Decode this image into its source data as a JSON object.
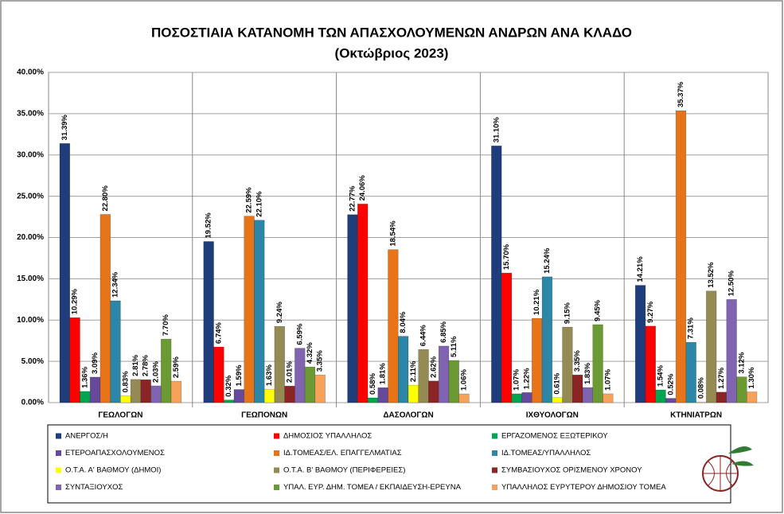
{
  "chart_data": {
    "type": "bar",
    "title": "ΠΟΣΟΣΤΙΑΙΑ ΚΑΤΑΝΟΜΗ ΤΩΝ ΑΠΑΣΧΟΛΟΥΜΕΝΩΝ ΑΝΔΡΩΝ ΑΝΑ ΚΛΑΔΟ",
    "subtitle": "(Οκτώβριος 2023)",
    "categories": [
      "ΓΕΩΛΟΓΩΝ",
      "ΓΕΩΠΟΝΩΝ",
      "ΔΑΣΟΛΟΓΩΝ",
      "ΙΧΘΥΟΛΟΓΩΝ",
      "ΚΤΗΝΙΑΤΡΩΝ"
    ],
    "ylim": [
      0,
      40
    ],
    "yticks": [
      {
        "value": 0,
        "label": "0.00%"
      },
      {
        "value": 5,
        "label": "5.00%"
      },
      {
        "value": 10,
        "label": "10.00%"
      },
      {
        "value": 15,
        "label": "15.00%"
      },
      {
        "value": 20,
        "label": "20.00%"
      },
      {
        "value": 25,
        "label": "25.00%"
      },
      {
        "value": 30,
        "label": "30.00%"
      },
      {
        "value": 35,
        "label": "35.00%"
      },
      {
        "value": 40,
        "label": "40.00%"
      }
    ],
    "grid": true,
    "series": [
      {
        "name": "ΑΝΕΡΓΟΣ/Η",
        "color": "#1f3d7a",
        "values": [
          31.39,
          19.52,
          22.77,
          31.1,
          14.21
        ],
        "value_labels": [
          "31.39%",
          "19.52%",
          "22.77%",
          "31.10%",
          "14.21%"
        ]
      },
      {
        "name": "ΔΗΜΟΣΙΟΣ ΥΠΑΛΛΗΛΟΣ",
        "color": "#ff0000",
        "values": [
          10.29,
          6.74,
          24.06,
          15.7,
          9.27
        ],
        "value_labels": [
          "10.29%",
          "6.74%",
          "24.06%",
          "15.70%",
          "9.27%"
        ]
      },
      {
        "name": "ΕΡΓΑΖΟΜΕΝΟΣ  ΕΞΩΤΕΡΙΚΟΥ",
        "color": "#00a550",
        "values": [
          1.36,
          0.32,
          0.58,
          1.07,
          1.54
        ],
        "value_labels": [
          "1.36%",
          "0.32%",
          "0.58%",
          "1.07%",
          "1.54%"
        ]
      },
      {
        "name": "ΕΤΕΡΟΑΠΑΣΧΟΛΟΥΜΕΝΟΣ",
        "color": "#66499a",
        "values": [
          3.09,
          1.59,
          1.81,
          1.22,
          0.52
        ],
        "value_labels": [
          "3.09%",
          "1.59%",
          "1.81%",
          "1.22%",
          "0.52%"
        ]
      },
      {
        "name": "ΙΔ.ΤΟΜΕΑΣ/ΕΛ.  ΕΠΑΓΓΕΛΜΑΤΙΑΣ",
        "color": "#e8741a",
        "values": [
          22.8,
          22.59,
          18.54,
          10.21,
          35.37
        ],
        "value_labels": [
          "22.80%",
          "22.59%",
          "18.54%",
          "10.21%",
          "35.37%"
        ]
      },
      {
        "name": "ΙΔ.ΤΟΜΕΑΣ/ΥΠΑΛΛΗΛΟΣ",
        "color": "#2c86a8",
        "values": [
          12.34,
          22.1,
          8.04,
          15.24,
          7.31
        ],
        "value_labels": [
          "12.34%",
          "22.10%",
          "8.04%",
          "15.24%",
          "7.31%"
        ]
      },
      {
        "name": "Ο.Τ.Α. Α' ΒΑΘΜΟΥ (ΔΗΜΟΙ)",
        "color": "#ffff00",
        "values": [
          0.83,
          1.63,
          2.11,
          0.61,
          0.08
        ],
        "value_labels": [
          "0.83%",
          "1.63%",
          "2.11%",
          "0.61%",
          "0.08%"
        ]
      },
      {
        "name": "Ο.Τ.Α. Β' ΒΑΘΜΟΥ (ΠΕΡΙΦΕΡΕΙΕΣ)",
        "color": "#948a54",
        "values": [
          2.81,
          9.24,
          6.44,
          9.15,
          13.52
        ],
        "value_labels": [
          "2.81%",
          "9.24%",
          "6.44%",
          "9.15%",
          "13.52%"
        ]
      },
      {
        "name": "ΣΥΜΒΑΣΙΟΥΧΟΣ  ΟΡΙΣΜΕΝΟΥ ΧΡΟΝΟΥ",
        "color": "#8b2525",
        "values": [
          2.78,
          2.01,
          2.62,
          3.35,
          1.27
        ],
        "value_labels": [
          "2.78%",
          "2.01%",
          "2.62%",
          "3.35%",
          "1.27%"
        ]
      },
      {
        "name": "ΣΥΝΤΑΞΙΟΥΧΟΣ",
        "color": "#8064b0",
        "values": [
          2.03,
          6.59,
          6.85,
          1.83,
          12.5
        ],
        "value_labels": [
          "2.03%",
          "6.59%",
          "6.85%",
          "1.83%",
          "12.50%"
        ]
      },
      {
        "name": "ΥΠΑΛ. ΕΥΡ. ΔΗΜ. ΤΟΜΕΑ  / ΕΚΠΑΙΔΕΥΣΗ-ΕΡΕΥΝΑ",
        "color": "#6b9a32",
        "values": [
          7.7,
          4.32,
          5.11,
          9.45,
          3.12
        ],
        "value_labels": [
          "7.70%",
          "4.32%",
          "5.11%",
          "9.45%",
          "3.12%"
        ]
      },
      {
        "name": "ΥΠΑΛΛΗΛΟΣ ΕΥΡΥΤΕΡΟΥ ΔΗΜΟΣΙΟΥ ΤΟΜΕΑ",
        "color": "#f7a25a",
        "values": [
          2.59,
          3.35,
          1.06,
          1.07,
          1.3
        ],
        "value_labels": [
          "2.59%",
          "3.35%",
          "1.06%",
          "1.07%",
          "1.30%"
        ]
      }
    ]
  }
}
